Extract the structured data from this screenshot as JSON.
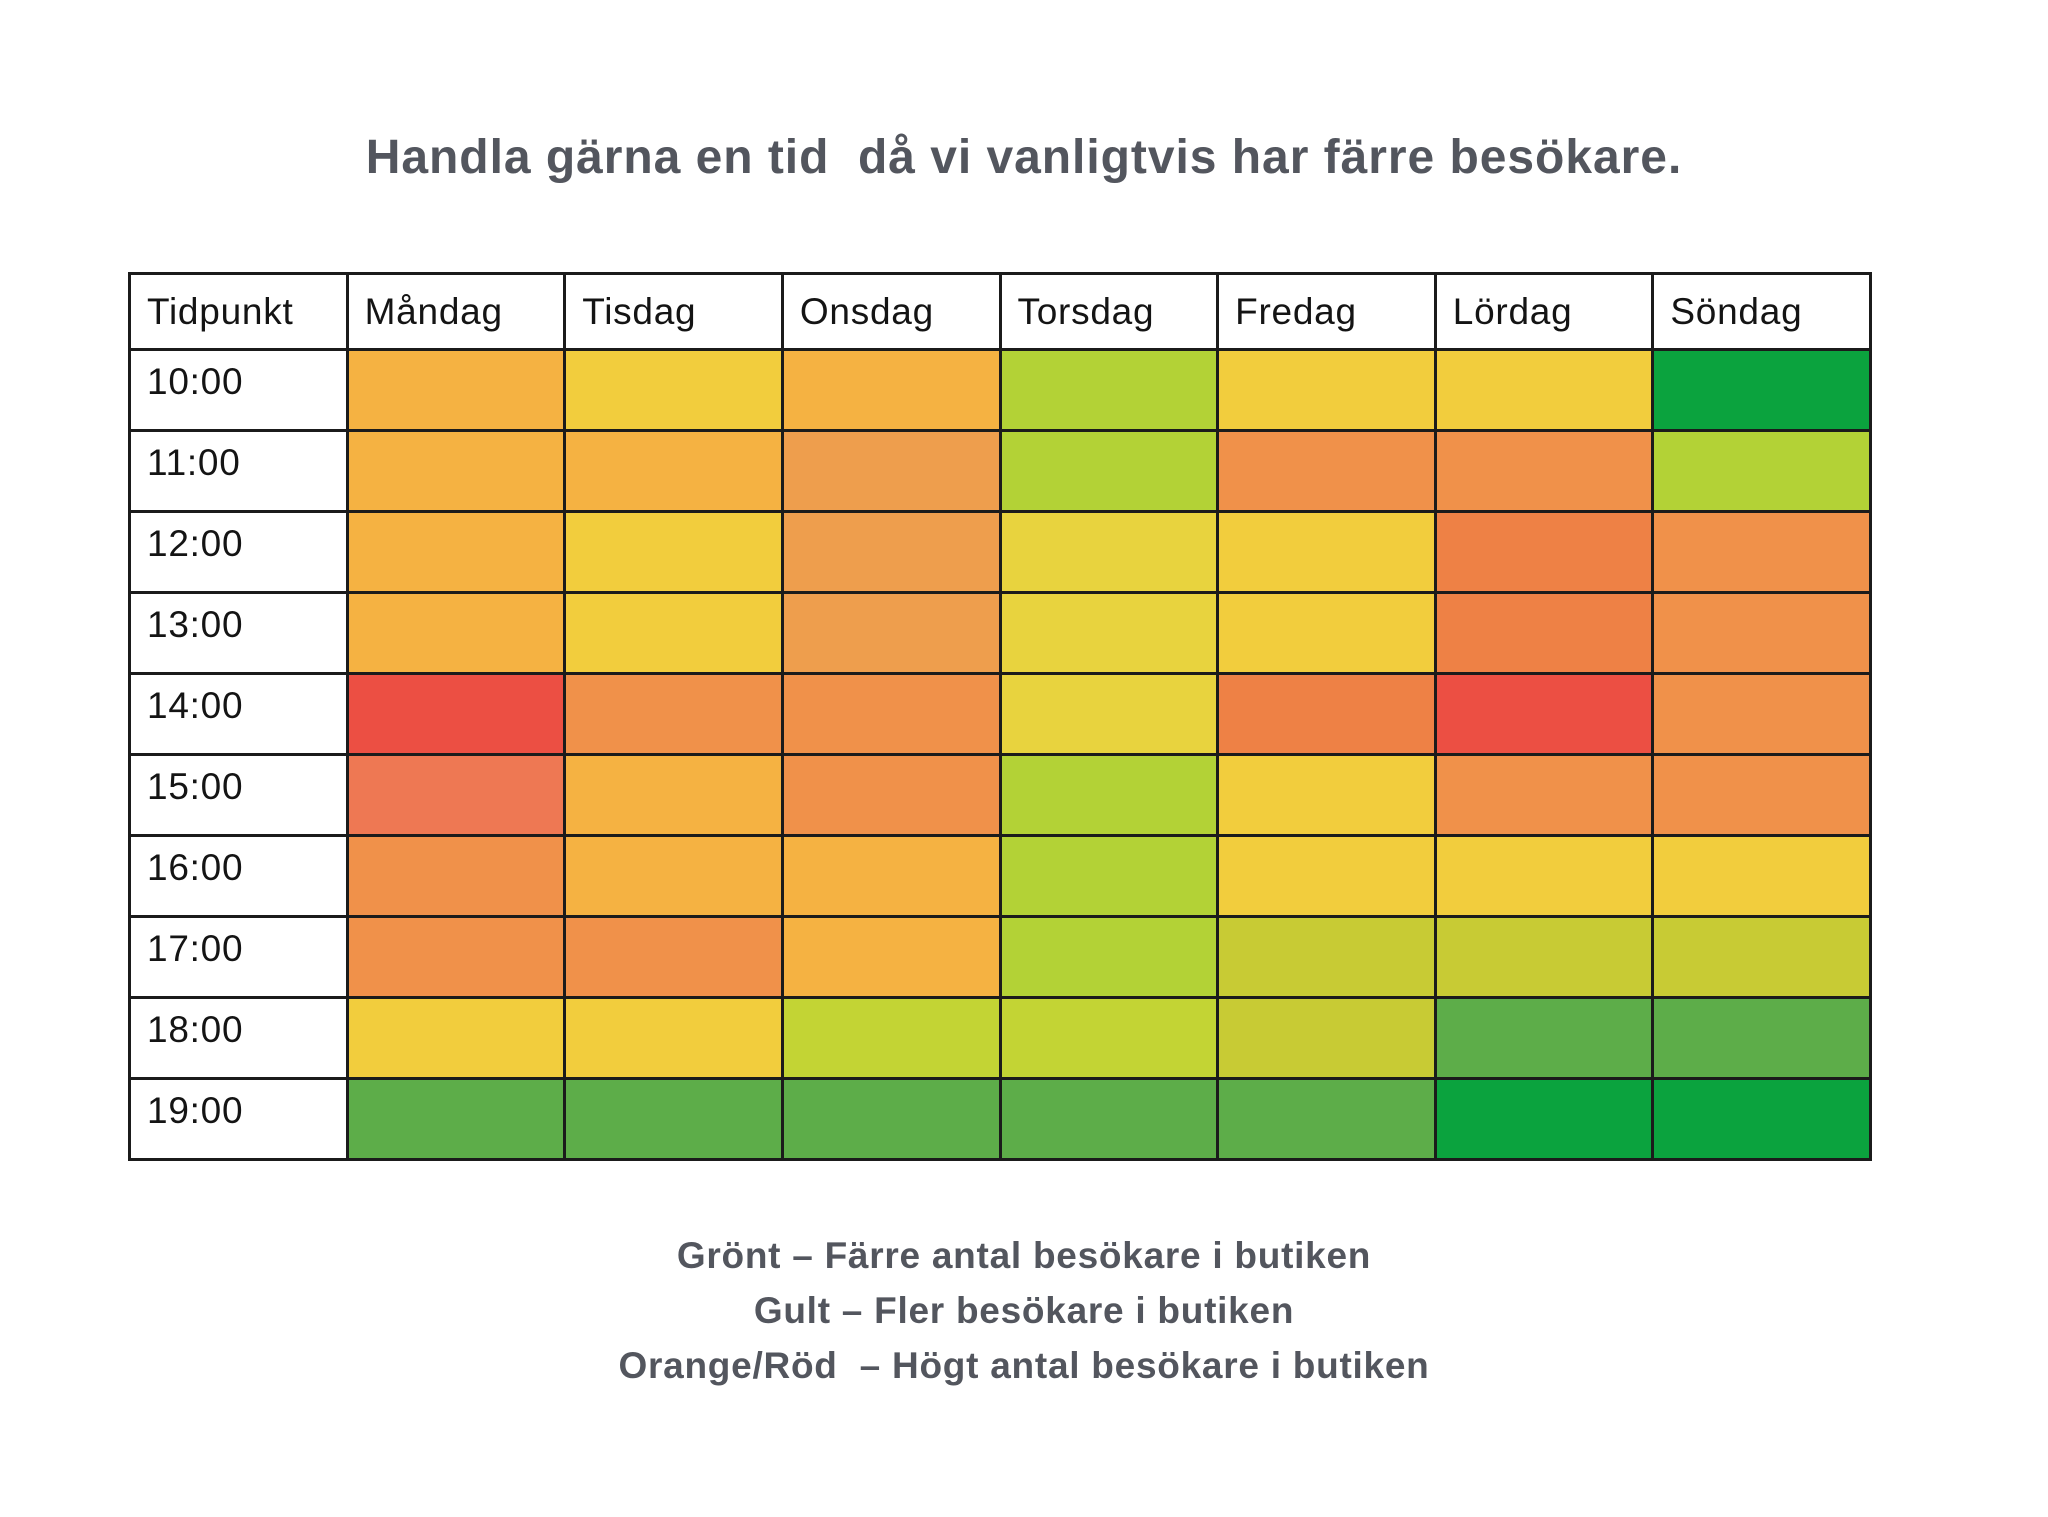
{
  "title": "Handla gärna en tid  då vi vanligtvis har färre besökare.",
  "chart_data": {
    "type": "heatmap",
    "columns": [
      "Tidpunkt",
      "Måndag",
      "Tisdag",
      "Onsdag",
      "Torsdag",
      "Fredag",
      "Lördag",
      "Söndag"
    ],
    "rows": [
      {
        "time": "10:00",
        "cells": [
          "amber",
          "yellow",
          "amber",
          "yellowgreen",
          "yellow",
          "yellow",
          "darkgreen"
        ]
      },
      {
        "time": "11:00",
        "cells": [
          "amber",
          "amber",
          "midorange",
          "yellowgreen",
          "orange",
          "orange",
          "yellowgreen"
        ]
      },
      {
        "time": "12:00",
        "cells": [
          "amber",
          "yellow",
          "midorange",
          "lemon",
          "yellow",
          "deeporange",
          "orange"
        ]
      },
      {
        "time": "13:00",
        "cells": [
          "amber",
          "yellow",
          "midorange",
          "lemon",
          "yellow",
          "deeporange",
          "orange"
        ]
      },
      {
        "time": "14:00",
        "cells": [
          "red",
          "orange",
          "orange",
          "lemon",
          "deeporange",
          "red",
          "orange"
        ]
      },
      {
        "time": "15:00",
        "cells": [
          "redorange",
          "amber",
          "orange",
          "yellowgreen",
          "yellow",
          "orange",
          "orange"
        ]
      },
      {
        "time": "16:00",
        "cells": [
          "orange",
          "amber",
          "amber",
          "yellowgreen",
          "yellow",
          "yellow",
          "yellow"
        ]
      },
      {
        "time": "17:00",
        "cells": [
          "orange",
          "orange",
          "amber",
          "yellowgreen",
          "olive",
          "olive",
          "olive"
        ]
      },
      {
        "time": "18:00",
        "cells": [
          "yellow",
          "yellow",
          "lime",
          "lime",
          "olive",
          "green",
          "green"
        ]
      },
      {
        "time": "19:00",
        "cells": [
          "green",
          "green",
          "green",
          "green",
          "green",
          "darkgreen",
          "darkgreen"
        ]
      }
    ],
    "palette": {
      "amber": "#F5B242",
      "yellow": "#F2CD3D",
      "lemon": "#E8D33E",
      "midorange": "#EE9E4D",
      "orange": "#F0914A",
      "deeporange": "#EE8145",
      "redorange": "#EE7853",
      "red": "#EC4F43",
      "yellowgreen": "#B3D236",
      "lime": "#C3D434",
      "olive": "#C8CB34",
      "green": "#5DAD49",
      "darkgreen": "#0BA33E"
    }
  },
  "legend": {
    "lines": [
      "Grönt – Färre antal besökare i butiken",
      "Gult – Fler besökare i butiken",
      "Orange/Röd  – Högt antal besökare i butiken"
    ]
  }
}
